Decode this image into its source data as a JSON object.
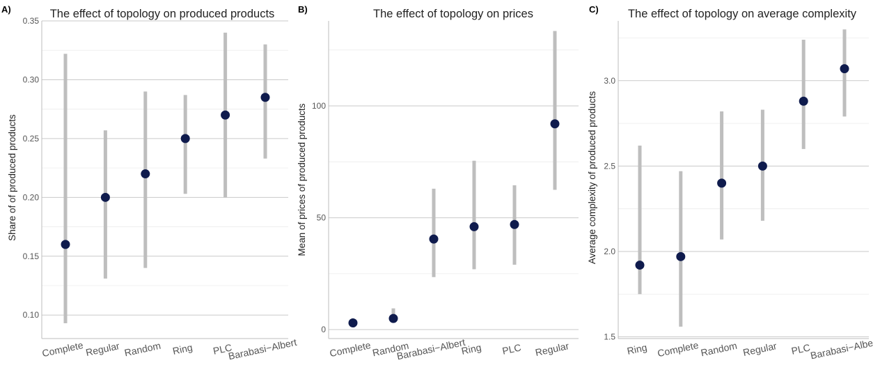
{
  "colors": {
    "point": "#0f1b4d",
    "errorbar": "#bebebe",
    "grid": "#c9c9c9",
    "minor_grid": "#ececec"
  },
  "chart_data": [
    {
      "type": "scatter",
      "panel": "A)",
      "title": "The effect of topology on produced products",
      "xlabel": "",
      "ylabel": "Share of of produced products",
      "categories": [
        "Complete",
        "Regular",
        "Random",
        "Ring",
        "PLC",
        "Barabasi−Albert"
      ],
      "values": [
        0.16,
        0.2,
        0.22,
        0.25,
        0.27,
        0.285
      ],
      "lower": [
        0.093,
        0.131,
        0.14,
        0.203,
        0.2,
        0.233
      ],
      "upper": [
        0.322,
        0.257,
        0.29,
        0.287,
        0.34,
        0.33
      ],
      "yticks": [
        0.1,
        0.15,
        0.2,
        0.25,
        0.3,
        0.35
      ],
      "ytick_labels": [
        "0.10",
        "0.15",
        "0.20",
        "0.25",
        "0.30",
        "0.35"
      ],
      "ylim": [
        0.08,
        0.35
      ],
      "grid": true
    },
    {
      "type": "scatter",
      "panel": "B)",
      "title": "The effect of topology on prices",
      "xlabel": "",
      "ylabel": "Mean of prices of produced products",
      "categories": [
        "Complete",
        "Random",
        "Barabasi−Albert",
        "Ring",
        "PLC",
        "Regular"
      ],
      "values": [
        3,
        5,
        40.5,
        46,
        47,
        92
      ],
      "lower": [
        3,
        3,
        23.5,
        27,
        29,
        62.5
      ],
      "upper": [
        3,
        9.5,
        63,
        75.5,
        64.5,
        133.5
      ],
      "yticks": [
        0,
        50,
        100
      ],
      "ytick_labels": [
        "0",
        "50",
        "100"
      ],
      "ylim": [
        -4,
        138
      ],
      "grid": true
    },
    {
      "type": "scatter",
      "panel": "C)",
      "title": "The effect of topology on average complexity",
      "xlabel": "",
      "ylabel": "Average complexity of produced products",
      "categories": [
        "Ring",
        "Complete",
        "Random",
        "Regular",
        "PLC",
        "Barabasi−Albe"
      ],
      "values": [
        1.92,
        1.97,
        2.4,
        2.5,
        2.88,
        3.07
      ],
      "lower": [
        1.75,
        1.56,
        2.07,
        2.18,
        2.6,
        2.79
      ],
      "upper": [
        2.62,
        2.47,
        2.82,
        2.83,
        3.24,
        3.3
      ],
      "yticks": [
        1.5,
        2.0,
        2.5,
        3.0
      ],
      "ytick_labels": [
        "1.5",
        "2.0",
        "2.5",
        "3.0"
      ],
      "ylim": [
        1.49,
        3.35
      ],
      "grid": true
    }
  ]
}
